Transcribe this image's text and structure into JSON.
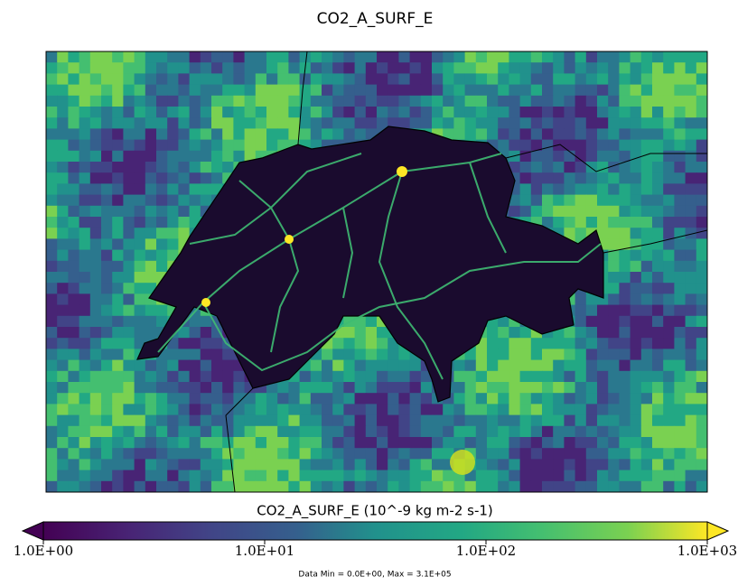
{
  "title": "CO2_A_SURF_E",
  "colorbar": {
    "label": "CO2_A_SURF_E (10^-9 kg m-2 s-1)",
    "log": true,
    "lim": [
      1,
      1000
    ],
    "ticks": [
      {
        "value": 1,
        "label": "1.0E+00"
      },
      {
        "value": 10,
        "label": "1.0E+01"
      },
      {
        "value": 100,
        "label": "1.0E+02"
      },
      {
        "value": 1000,
        "label": "1.0E+03"
      }
    ]
  },
  "footnote": "Data Min = 0.0E+00, Max = 3.1E+05"
}
